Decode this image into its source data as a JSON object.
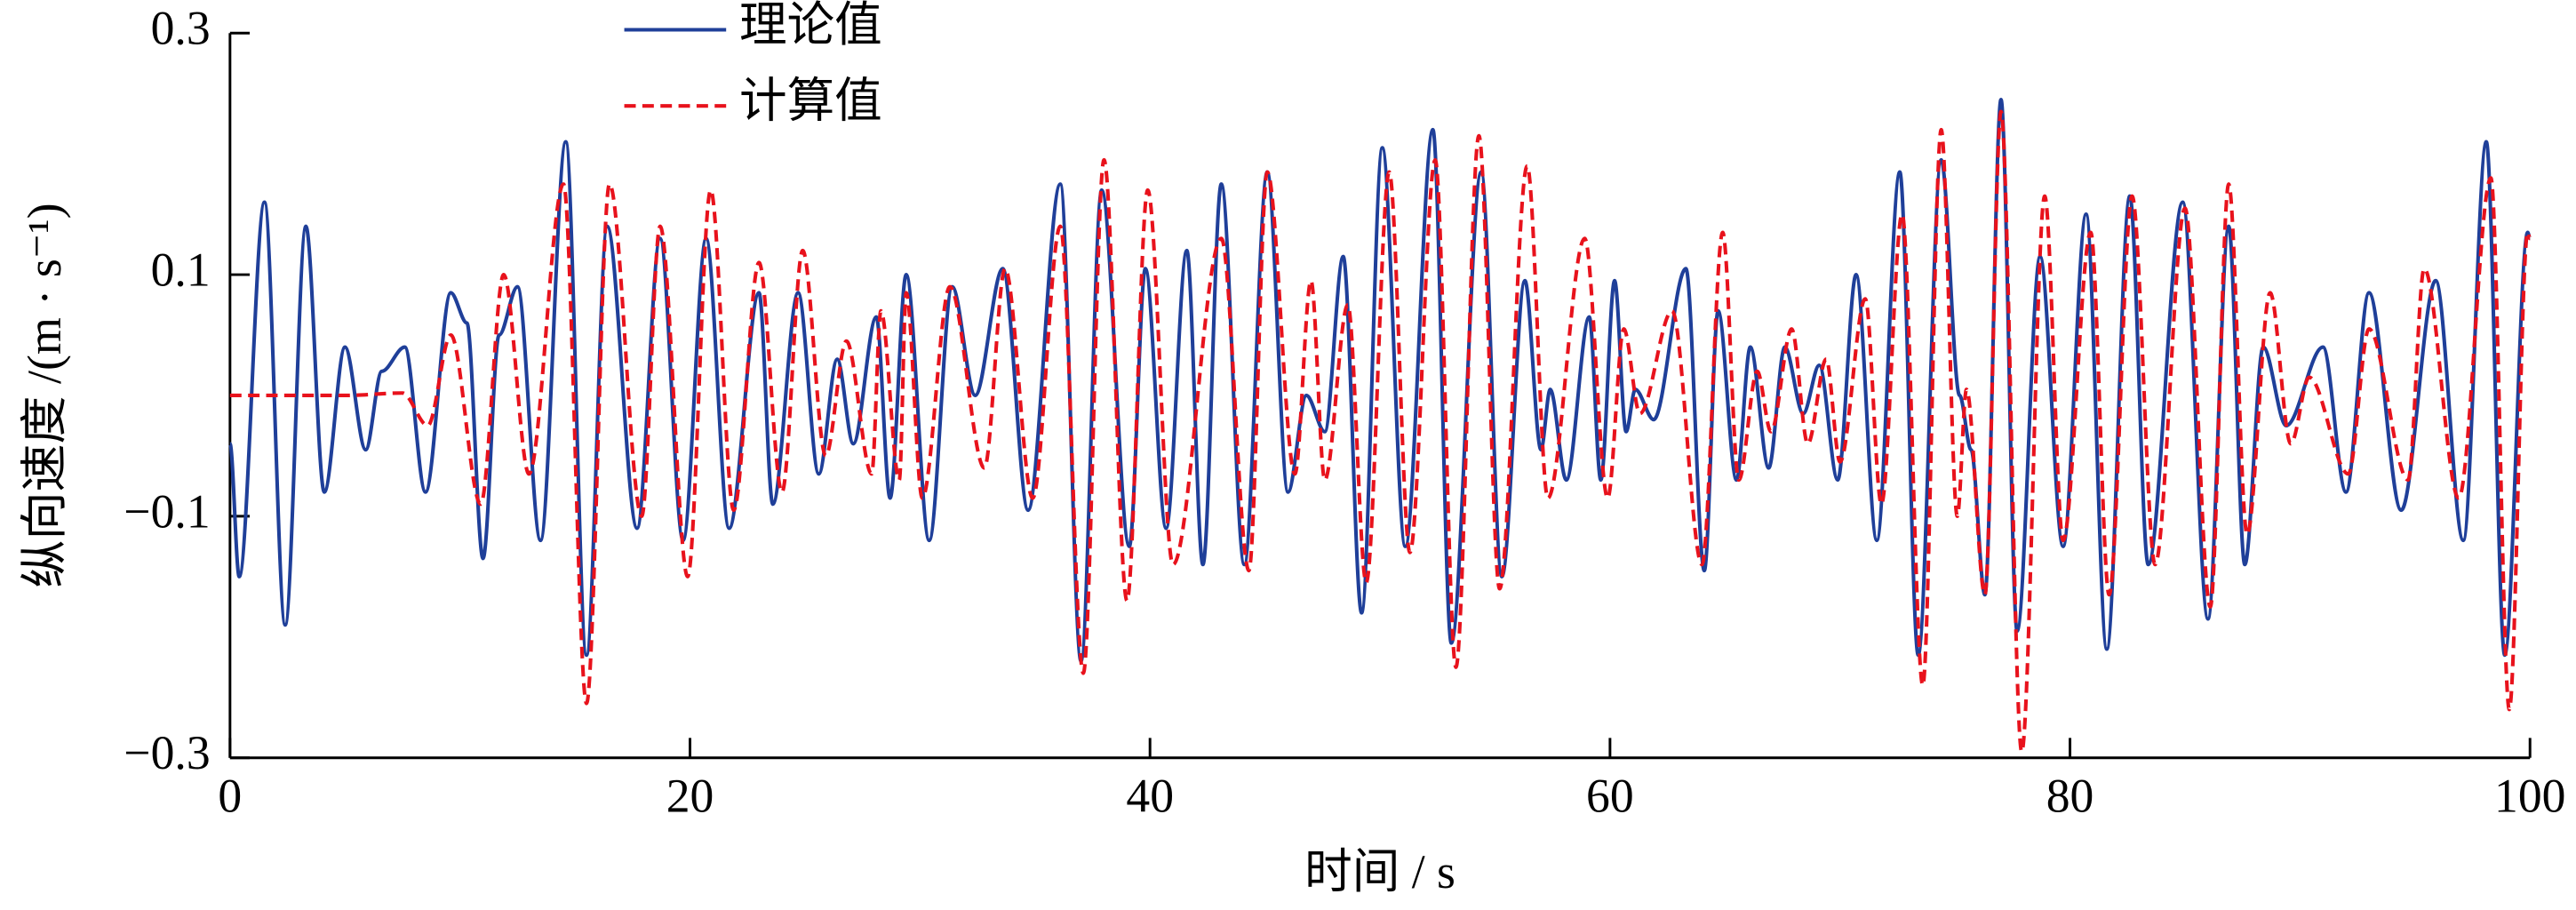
{
  "chart_data": {
    "type": "line",
    "xlabel": "时间 / s",
    "ylabel": "纵向速度 /(m · s⁻¹)",
    "xlim": [
      0,
      100
    ],
    "xticks": [
      0,
      20,
      40,
      60,
      80,
      100
    ],
    "ylim": [
      -0.3,
      0.3
    ],
    "yticks": [
      {
        "value": -0.3,
        "label": "−0.3"
      },
      {
        "value": -0.1,
        "label": "−0.1"
      },
      0.1,
      0.3
    ],
    "legend": "upper left",
    "series": [
      {
        "name": "理论值",
        "color": "#1f3f99",
        "dash": false,
        "x": [
          0,
          0.4,
          1.5,
          2.4,
          3.3,
          4.1,
          5,
          5.9,
          6.6,
          7.6,
          8.5,
          9.6,
          10.3,
          11,
          11.7,
          12.5,
          13.5,
          14.6,
          15.5,
          16.4,
          17.7,
          18.7,
          19.7,
          20.7,
          21.7,
          23,
          23.6,
          24.7,
          25.6,
          26.4,
          27.1,
          28.1,
          28.7,
          29.4,
          30.4,
          31.4,
          32.4,
          33.6,
          34.7,
          36.1,
          37,
          37.9,
          39.1,
          39.8,
          40.7,
          41.6,
          42.3,
          43.1,
          44.1,
          45.1,
          46,
          46.8,
          47.6,
          48.4,
          49.2,
          50.1,
          51.1,
          52.3,
          53.1,
          54.4,
          55.3,
          56.3,
          57,
          57.4,
          58.1,
          59.1,
          59.6,
          60.2,
          60.7,
          61.1,
          61.9,
          63.3,
          64.1,
          64.7,
          65.5,
          66.1,
          66.9,
          67.6,
          68.4,
          69.1,
          69.9,
          70.7,
          71.6,
          72.6,
          73.4,
          74.4,
          75.2,
          75.7,
          76.3,
          77,
          77.7,
          78.7,
          79.7,
          80.7,
          81.6,
          82.6,
          83.4,
          84.9,
          86,
          86.9,
          87.6,
          88.4,
          89.4,
          91,
          92,
          93,
          94.4,
          95.9,
          97.1,
          98.1,
          98.9,
          99.9,
          100
        ],
        "values": [
          -0.04,
          -0.15,
          0.16,
          -0.19,
          0.14,
          -0.08,
          0.04,
          -0.045,
          0.02,
          0.04,
          -0.08,
          0.085,
          0.06,
          -0.135,
          0.05,
          0.09,
          -0.12,
          0.21,
          -0.215,
          0.14,
          -0.11,
          0.13,
          -0.12,
          0.13,
          -0.11,
          0.085,
          -0.09,
          0.085,
          -0.065,
          0.03,
          -0.04,
          0.065,
          -0.085,
          0.1,
          -0.12,
          0.09,
          0,
          0.105,
          -0.095,
          0.175,
          -0.22,
          0.17,
          -0.125,
          0.105,
          -0.11,
          0.12,
          -0.14,
          0.175,
          -0.14,
          0.185,
          -0.08,
          0,
          -0.03,
          0.115,
          -0.18,
          0.205,
          -0.125,
          0.22,
          -0.205,
          0.185,
          -0.15,
          0.095,
          -0.045,
          0.005,
          -0.07,
          0.065,
          -0.07,
          0.095,
          -0.03,
          0.005,
          -0.02,
          0.105,
          -0.145,
          0.07,
          -0.07,
          0.04,
          -0.06,
          0.04,
          -0.015,
          0.025,
          -0.07,
          0.1,
          -0.12,
          0.185,
          -0.215,
          0.195,
          0,
          -0.045,
          -0.165,
          0.245,
          -0.195,
          0.115,
          -0.125,
          0.15,
          -0.21,
          0.165,
          -0.14,
          0.16,
          -0.185,
          0.14,
          -0.14,
          0.04,
          -0.025,
          0.04,
          -0.08,
          0.085,
          -0.095,
          0.095,
          -0.12,
          0.21,
          -0.215,
          0.135,
          0.13
        ]
      },
      {
        "name": "计算值",
        "color": "#e8121c",
        "dash": true,
        "x": [
          0,
          5,
          7.5,
          8.6,
          9.6,
          10.9,
          11.9,
          13,
          14.5,
          15.5,
          16.5,
          17.9,
          18.7,
          19.9,
          20.9,
          21.9,
          23,
          24,
          24.9,
          25.9,
          26.8,
          27.9,
          28.3,
          29.1,
          29.4,
          30.1,
          31.3,
          32.8,
          33.7,
          34.9,
          36.1,
          37.1,
          38,
          39,
          39.9,
          41,
          43.1,
          44.3,
          45.1,
          46.3,
          47,
          47.6,
          48.6,
          49.4,
          50.4,
          51.3,
          52.4,
          53.3,
          54.3,
          55.2,
          56.4,
          57.3,
          58.9,
          59.9,
          60.6,
          61.3,
          62.7,
          64,
          64.9,
          65.6,
          66.4,
          67,
          67.9,
          68.6,
          69.4,
          70,
          71.1,
          71.8,
          72.7,
          73.6,
          74.4,
          75.1,
          75.5,
          76.3,
          77,
          77.9,
          78.9,
          79.7,
          80.9,
          81.7,
          82.7,
          83.7,
          85,
          86.1,
          86.9,
          87.7,
          88.7,
          89.6,
          90.4,
          92.1,
          93,
          94.7,
          95.4,
          96.9,
          98.3,
          99.1,
          99.9,
          100
        ],
        "values": [
          0,
          0,
          0.002,
          -0.025,
          0.05,
          -0.09,
          0.1,
          -0.065,
          0.175,
          -0.255,
          0.175,
          -0.1,
          0.14,
          -0.15,
          0.17,
          -0.095,
          0.11,
          -0.08,
          0.12,
          -0.05,
          0.045,
          -0.065,
          0.07,
          -0.07,
          0.085,
          -0.085,
          0.09,
          -0.06,
          0.105,
          -0.085,
          0.14,
          -0.23,
          0.195,
          -0.17,
          0.17,
          -0.14,
          0.13,
          -0.145,
          0.185,
          -0.065,
          0.095,
          -0.07,
          0.075,
          -0.155,
          0.185,
          -0.13,
          0.195,
          -0.225,
          0.215,
          -0.16,
          0.19,
          -0.085,
          0.13,
          -0.085,
          0.055,
          -0.015,
          0.07,
          -0.14,
          0.135,
          -0.07,
          0.02,
          -0.03,
          0.055,
          -0.04,
          0.03,
          -0.055,
          0.08,
          -0.09,
          0.15,
          -0.24,
          0.22,
          -0.1,
          0.005,
          -0.165,
          0.235,
          -0.295,
          0.165,
          -0.12,
          0.135,
          -0.165,
          0.165,
          -0.14,
          0.155,
          -0.175,
          0.175,
          -0.115,
          0.085,
          -0.04,
          0.015,
          -0.065,
          0.055,
          -0.07,
          0.105,
          -0.085,
          0.18,
          -0.26,
          0.135,
          0.13
        ]
      }
    ]
  }
}
